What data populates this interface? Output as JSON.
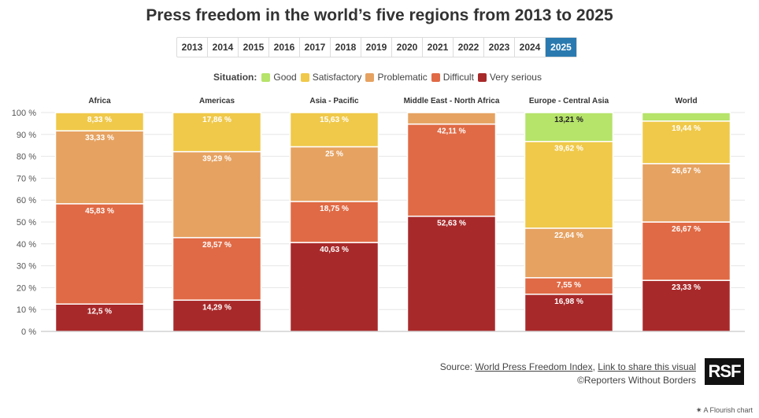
{
  "title": "Press freedom in the world’s five regions from 2013 to 2025",
  "years": [
    "2013",
    "2014",
    "2015",
    "2016",
    "2017",
    "2018",
    "2019",
    "2020",
    "2021",
    "2022",
    "2023",
    "2024",
    "2025"
  ],
  "selected_year": "2025",
  "legend": {
    "title": "Situation:",
    "items": [
      {
        "label": "Good",
        "color": "#b6e36a"
      },
      {
        "label": "Satisfactory",
        "color": "#f0c94a"
      },
      {
        "label": "Problematic",
        "color": "#e6a261"
      },
      {
        "label": "Difficult",
        "color": "#e06a45"
      },
      {
        "label": "Very serious",
        "color": "#a8292a"
      }
    ]
  },
  "chart_data": {
    "type": "bar",
    "stacked": true,
    "categories": [
      "Africa",
      "Americas",
      "Asia - Pacific",
      "Middle East - North Africa",
      "Europe - Central Asia",
      "World"
    ],
    "ylim": [
      0,
      100
    ],
    "yticks": [
      "0 %",
      "10 %",
      "20 %",
      "30 %",
      "40 %",
      "50 %",
      "60 %",
      "70 %",
      "80 %",
      "90 %",
      "100 %"
    ],
    "series": [
      {
        "name": "Very serious",
        "color": "#a8292a",
        "values": [
          12.5,
          14.29,
          40.63,
          52.63,
          16.98,
          23.33
        ],
        "labels": [
          "12,5 %",
          "14,29 %",
          "40,63 %",
          "52,63 %",
          "16,98 %",
          "23,33 %"
        ]
      },
      {
        "name": "Difficult",
        "color": "#e06a45",
        "values": [
          45.83,
          28.57,
          18.75,
          42.11,
          7.55,
          26.67
        ],
        "labels": [
          "45,83 %",
          "28,57 %",
          "18,75 %",
          "42,11 %",
          "7,55 %",
          "26,67 %"
        ]
      },
      {
        "name": "Problematic",
        "color": "#e6a261",
        "values": [
          33.33,
          39.29,
          25,
          5.26,
          22.64,
          26.67
        ],
        "labels": [
          "33,33 %",
          "39,29 %",
          "25 %",
          "",
          "22,64 %",
          "26,67 %"
        ]
      },
      {
        "name": "Satisfactory",
        "color": "#f0c94a",
        "values": [
          8.33,
          17.86,
          15.63,
          0,
          39.62,
          19.44
        ],
        "labels": [
          "8,33 %",
          "17,86 %",
          "15,63 %",
          "",
          "39,62 %",
          "19,44 %"
        ]
      },
      {
        "name": "Good",
        "color": "#b6e36a",
        "values": [
          0,
          0,
          0,
          0,
          13.21,
          3.89
        ],
        "labels": [
          "",
          "",
          "",
          "",
          "13,21 %",
          ""
        ]
      }
    ]
  },
  "source": {
    "prefix": "Source: ",
    "link1": "World Press Freedom Index",
    "sep": ", ",
    "link2": "Link to share this visual",
    "copyright": "©Reporters Without Borders"
  },
  "logo_text": "RSF",
  "flourish": "✷ A Flourish chart"
}
